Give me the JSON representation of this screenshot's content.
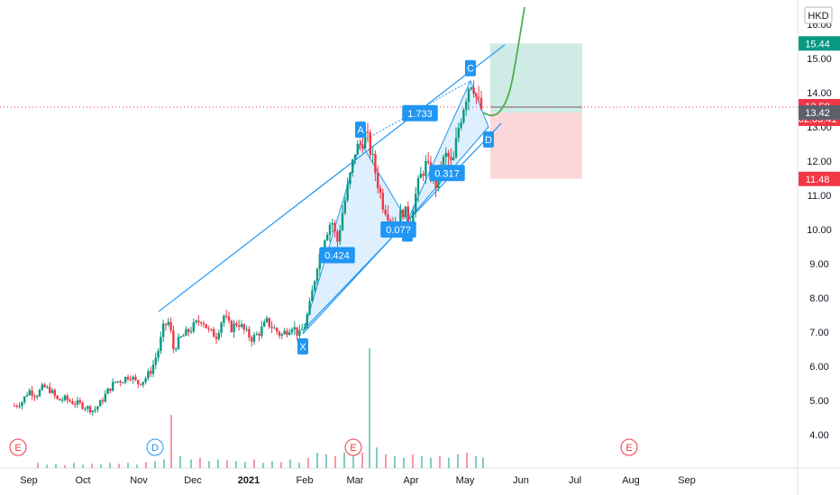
{
  "chart_data": {
    "type": "candlestick",
    "currency": "HKD",
    "y_axis": {
      "min": 3.3,
      "max": 16.6,
      "ticks": [
        4.0,
        5.0,
        6.0,
        7.0,
        8.0,
        9.0,
        10.0,
        11.0,
        12.0,
        13.0,
        14.0,
        15.0,
        16.0
      ],
      "tick_labels": [
        "4.00",
        "5.00",
        "6.00",
        "7.00",
        "8.00",
        "9.00",
        "10.00",
        "11.00",
        "12.00",
        "13.00",
        "14.00",
        "15.00",
        "16.00"
      ]
    },
    "x_axis": {
      "labels": [
        {
          "text": "Sep",
          "day": 0
        },
        {
          "text": "Oct",
          "day": 30
        },
        {
          "text": "Nov",
          "day": 61
        },
        {
          "text": "Dec",
          "day": 91
        },
        {
          "text": "2021",
          "day": 122
        },
        {
          "text": "Feb",
          "day": 153
        },
        {
          "text": "Mar",
          "day": 181
        },
        {
          "text": "Apr",
          "day": 212
        },
        {
          "text": "May",
          "day": 242
        },
        {
          "text": "Jun",
          "day": 273
        },
        {
          "text": "Jul",
          "day": 303
        },
        {
          "text": "Aug",
          "day": 334
        },
        {
          "text": "Sep",
          "day": 365
        }
      ]
    },
    "date_origin": "2020-09-01",
    "price_series": [
      [
        -8,
        4.85
      ],
      [
        -4,
        4.95
      ],
      [
        0,
        5.3
      ],
      [
        4,
        5.15
      ],
      [
        8,
        5.4
      ],
      [
        12,
        5.3
      ],
      [
        16,
        5.0
      ],
      [
        20,
        5.05
      ],
      [
        24,
        4.95
      ],
      [
        28,
        4.9
      ],
      [
        32,
        4.8
      ],
      [
        36,
        4.7
      ],
      [
        40,
        4.95
      ],
      [
        44,
        5.3
      ],
      [
        48,
        5.55
      ],
      [
        52,
        5.6
      ],
      [
        56,
        5.75
      ],
      [
        60,
        5.5
      ],
      [
        64,
        5.6
      ],
      [
        68,
        5.9
      ],
      [
        72,
        6.5
      ],
      [
        75,
        7.2
      ],
      [
        78,
        7.3
      ],
      [
        80,
        6.5
      ],
      [
        84,
        6.8
      ],
      [
        88,
        7.0
      ],
      [
        92,
        7.2
      ],
      [
        96,
        7.4
      ],
      [
        100,
        7.0
      ],
      [
        104,
        6.9
      ],
      [
        108,
        7.5
      ],
      [
        112,
        7.1
      ],
      [
        116,
        7.3
      ],
      [
        120,
        7.0
      ],
      [
        124,
        6.8
      ],
      [
        128,
        7.0
      ],
      [
        132,
        7.3
      ],
      [
        136,
        7.1
      ],
      [
        140,
        6.9
      ],
      [
        146,
        7.2
      ],
      [
        150,
        6.9
      ],
      [
        153,
        7.2
      ],
      [
        156,
        7.8
      ],
      [
        160,
        9.0
      ],
      [
        164,
        9.8
      ],
      [
        168,
        10.3
      ],
      [
        171,
        9.6
      ],
      [
        174,
        10.5
      ],
      [
        178,
        11.5
      ],
      [
        181,
        12.3
      ],
      [
        184,
        12.5
      ],
      [
        187,
        12.8
      ],
      [
        190,
        12.2
      ],
      [
        193,
        11.5
      ],
      [
        196,
        10.8
      ],
      [
        199,
        10.5
      ],
      [
        202,
        10.1
      ],
      [
        205,
        10.3
      ],
      [
        208,
        10.6
      ],
      [
        211,
        10.2
      ],
      [
        214,
        10.9
      ],
      [
        217,
        11.5
      ],
      [
        220,
        11.9
      ],
      [
        223,
        11.6
      ],
      [
        226,
        11.3
      ],
      [
        229,
        11.9
      ],
      [
        232,
        12.2
      ],
      [
        235,
        11.8
      ],
      [
        238,
        12.9
      ],
      [
        241,
        13.6
      ],
      [
        244,
        14.2
      ],
      [
        246,
        14.4
      ],
      [
        248,
        13.9
      ],
      [
        250,
        13.6
      ],
      [
        252,
        13.45
      ]
    ],
    "volume_series": [
      [
        5,
        0.3
      ],
      [
        10,
        0.2
      ],
      [
        15,
        0.25
      ],
      [
        20,
        0.15
      ],
      [
        25,
        0.3
      ],
      [
        30,
        0.2
      ],
      [
        35,
        0.25
      ],
      [
        40,
        0.2
      ],
      [
        45,
        0.3
      ],
      [
        50,
        0.25
      ],
      [
        55,
        0.3
      ],
      [
        60,
        0.2
      ],
      [
        65,
        0.35
      ],
      [
        70,
        0.4
      ],
      [
        75,
        0.5
      ],
      [
        79,
        3.1
      ],
      [
        84,
        0.7
      ],
      [
        90,
        0.5
      ],
      [
        95,
        0.6
      ],
      [
        100,
        0.4
      ],
      [
        105,
        0.5
      ],
      [
        110,
        0.45
      ],
      [
        115,
        0.4
      ],
      [
        120,
        0.35
      ],
      [
        125,
        0.5
      ],
      [
        130,
        0.3
      ],
      [
        135,
        0.4
      ],
      [
        140,
        0.35
      ],
      [
        145,
        0.5
      ],
      [
        150,
        0.3
      ],
      [
        155,
        0.6
      ],
      [
        160,
        0.9
      ],
      [
        165,
        0.8
      ],
      [
        170,
        0.7
      ],
      [
        175,
        0.9
      ],
      [
        180,
        1.0
      ],
      [
        185,
        0.9
      ],
      [
        189,
        7.0
      ],
      [
        193,
        1.2
      ],
      [
        198,
        0.8
      ],
      [
        203,
        0.7
      ],
      [
        208,
        0.6
      ],
      [
        213,
        0.8
      ],
      [
        218,
        0.7
      ],
      [
        223,
        0.6
      ],
      [
        228,
        0.7
      ],
      [
        233,
        0.6
      ],
      [
        238,
        0.8
      ],
      [
        243,
        0.9
      ],
      [
        248,
        0.7
      ],
      [
        252,
        0.6
      ]
    ],
    "harmonic_pattern": {
      "points": [
        {
          "label": "X",
          "day": 152,
          "price": 6.95
        },
        {
          "label": "A",
          "day": 184,
          "price": 12.55
        },
        {
          "label": "B",
          "day": 210,
          "price": 10.25
        },
        {
          "label": "C",
          "day": 245,
          "price": 14.35
        },
        {
          "label": "D",
          "day": 255,
          "price": 13.0
        }
      ],
      "ratios": [
        {
          "text": "0.424",
          "day": 171,
          "price": 9.25
        },
        {
          "text": "0.07?",
          "day": 205,
          "price": 10.0
        },
        {
          "text": "0.317",
          "day": 232,
          "price": 11.65
        },
        {
          "text": "1.733",
          "day": 217,
          "price": 13.4
        }
      ]
    },
    "channel": {
      "upper": [
        [
          72,
          7.6
        ],
        [
          264,
          15.4
        ]
      ],
      "lower": [
        [
          153,
          7.1
        ],
        [
          262,
          13.1
        ]
      ]
    },
    "projection": [
      [
        252,
        13.42
      ],
      [
        257,
        13.3
      ],
      [
        262,
        13.45
      ],
      [
        267,
        14.0
      ],
      [
        271,
        15.2
      ],
      [
        275,
        16.5
      ]
    ],
    "target_zone": {
      "day_start": 256,
      "day_end": 307,
      "top": 15.44,
      "entry": 13.42,
      "stop": 11.48
    },
    "price_labels": [
      {
        "text": "15.44",
        "value": 15.44,
        "color": "#089981"
      },
      {
        "text": "13.58",
        "extra": "02:03:41",
        "value": 13.58,
        "color": "#f23645"
      },
      {
        "text": "13.42",
        "value": 13.42,
        "color": "#5d606b"
      },
      {
        "text": "11.48",
        "value": 11.48,
        "color": "#f23645"
      }
    ],
    "current_price": 13.58,
    "events": [
      {
        "text": "E",
        "day": -6,
        "color": "#f23645"
      },
      {
        "text": "D",
        "day": 70,
        "color": "#2196f3"
      },
      {
        "text": "E",
        "day": 180,
        "color": "#f23645"
      },
      {
        "text": "E",
        "day": 333,
        "color": "#f23645"
      }
    ]
  }
}
